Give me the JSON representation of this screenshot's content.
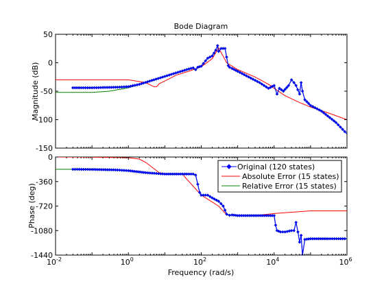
{
  "chart_data": [
    {
      "type": "line",
      "title": "Bode Diagram",
      "ylabel": "Magnitude (dB)",
      "xlabel": "",
      "xscale": "log",
      "xlim": [
        0.01,
        1000000
      ],
      "ylim": [
        -150,
        50
      ],
      "ytick_labels": [
        "50",
        "0",
        "-50",
        "-100",
        "-150"
      ],
      "ytick_values": [
        50,
        0,
        -50,
        -100,
        -150
      ],
      "series": [
        {
          "name": "Original (120 states)",
          "color": "#0000ff",
          "marker": "diamond",
          "x": [
            0.03,
            0.05,
            0.1,
            0.2,
            0.5,
            1,
            2,
            5,
            10,
            20,
            40,
            60,
            70,
            80,
            100,
            150,
            200,
            250,
            280,
            300,
            350,
            450,
            550,
            600,
            700,
            1000,
            2000,
            4000,
            7000,
            10000,
            12000,
            14000,
            18000,
            25000,
            30000,
            35000,
            40000,
            50000,
            55000,
            60000,
            70000,
            100000,
            200000,
            500000,
            1000000
          ],
          "y": [
            -44,
            -44,
            -44,
            -43.5,
            -43,
            -42,
            -38,
            -30,
            -24,
            -18,
            -12,
            -9,
            -12,
            -8,
            -6,
            8,
            12,
            22,
            30,
            20,
            25,
            25,
            -5,
            -8,
            -10,
            -15,
            -25,
            -35,
            -45,
            -40,
            -55,
            -45,
            -50,
            -40,
            -30,
            -35,
            -40,
            -55,
            -35,
            -50,
            -65,
            -75,
            -85,
            -105,
            -125
          ]
        },
        {
          "name": "Absolute Error (15 states)",
          "color": "#ff0000",
          "marker": "none",
          "x": [
            0.01,
            0.1,
            1,
            3,
            5,
            6,
            7,
            10,
            20,
            50,
            100,
            200,
            300,
            500,
            1000,
            3000,
            8000,
            10000,
            20000,
            50000,
            100000,
            300000,
            1000000
          ],
          "y": [
            -30,
            -30,
            -30,
            -35,
            -42,
            -42,
            -37,
            -32,
            -22,
            -14,
            -7,
            7,
            26,
            0,
            -12,
            -25,
            -40,
            -45,
            -58,
            -70,
            -78,
            -88,
            -100
          ]
        },
        {
          "name": "Relative Error (15 states)",
          "color": "#008000",
          "marker": "none",
          "x": [
            0.01,
            0.1,
            0.3,
            1,
            2,
            5,
            10,
            20,
            40,
            60,
            70,
            80,
            100,
            150,
            200,
            250,
            280,
            300,
            350,
            450,
            550,
            600,
            700,
            1000,
            2000,
            4000,
            7000,
            10000,
            12000,
            14000,
            18000,
            25000,
            30000,
            35000,
            40000,
            50000,
            55000,
            60000,
            70000,
            100000,
            200000,
            500000,
            1000000
          ],
          "y": [
            -52,
            -52,
            -50,
            -44,
            -38,
            -30,
            -24,
            -18,
            -12,
            -9,
            -12,
            -8,
            -6,
            8,
            12,
            22,
            30,
            20,
            25,
            25,
            -5,
            -8,
            -10,
            -15,
            -25,
            -35,
            -45,
            -40,
            -55,
            -45,
            -50,
            -40,
            -30,
            -35,
            -40,
            -55,
            -35,
            -50,
            -65,
            -75,
            -85,
            -105,
            -125
          ]
        }
      ]
    },
    {
      "type": "line",
      "title": "",
      "ylabel": "Phase (deg)",
      "xlabel": "Frequency  (rad/s)",
      "xscale": "log",
      "xlim": [
        0.01,
        1000000
      ],
      "ylim": [
        -1440,
        0
      ],
      "ytick_labels": [
        "0",
        "-360",
        "-720",
        "-1080",
        "-1440"
      ],
      "ytick_values": [
        0,
        -360,
        -720,
        -1080,
        -1440
      ],
      "xtick_labels": [
        "10^-2",
        "10^0",
        "10^2",
        "10^4",
        "10^6"
      ],
      "xtick_values": [
        0.01,
        1,
        100,
        10000,
        1000000
      ],
      "legend_position": "top-right",
      "series": [
        {
          "name": "Original (120 states)",
          "color": "#0000ff",
          "marker": "diamond",
          "x": [
            0.03,
            0.1,
            0.5,
            1,
            3,
            10,
            40,
            60,
            70,
            80,
            90,
            100,
            150,
            200,
            300,
            400,
            500,
            600,
            700,
            1000,
            3000,
            7000,
            10000,
            11000,
            12000,
            15000,
            20000,
            30000,
            35000,
            40000,
            45000,
            50000,
            55000,
            60000,
            70000,
            100000,
            300000,
            1000000
          ],
          "y": [
            -180,
            -182,
            -190,
            -200,
            -230,
            -250,
            -250,
            -250,
            -265,
            -400,
            -520,
            -560,
            -560,
            -600,
            -650,
            -720,
            -840,
            -855,
            -850,
            -860,
            -860,
            -860,
            -860,
            -1000,
            -1080,
            -1100,
            -1100,
            -1080,
            -1080,
            -960,
            -1100,
            -1250,
            -1150,
            -1440,
            -1210,
            -1200,
            -1200,
            -1200
          ]
        },
        {
          "name": "Absolute Error (15 states)",
          "color": "#ff0000",
          "marker": "none",
          "x": [
            0.01,
            0.1,
            1,
            2,
            3,
            5,
            7,
            10,
            30,
            100,
            300,
            500,
            1000,
            3000,
            10000,
            100000,
            1000000
          ],
          "y": [
            0,
            -2,
            -10,
            -30,
            -80,
            -170,
            -230,
            -245,
            -250,
            -560,
            -720,
            -850,
            -860,
            -860,
            -830,
            -790,
            -790
          ]
        },
        {
          "name": "Relative Error (15 states)",
          "color": "#008000",
          "marker": "none",
          "x": [
            0.01,
            0.1,
            0.5,
            1,
            3,
            10,
            40,
            60,
            70,
            80,
            90,
            100,
            150,
            200,
            300,
            400,
            500,
            600,
            700,
            1000,
            3000,
            7000,
            10000,
            11000,
            12000,
            15000,
            20000,
            30000,
            35000,
            40000,
            45000,
            50000,
            55000,
            60000,
            70000,
            100000,
            300000,
            1000000
          ],
          "y": [
            -180,
            -180,
            -190,
            -200,
            -230,
            -250,
            -250,
            -250,
            -265,
            -400,
            -520,
            -560,
            -560,
            -600,
            -650,
            -720,
            -840,
            -855,
            -850,
            -860,
            -860,
            -860,
            -860,
            -1000,
            -1080,
            -1100,
            -1100,
            -1080,
            -1080,
            -960,
            -1100,
            -1250,
            -1150,
            -1440,
            -1210,
            -1200,
            -1200,
            -1200
          ]
        }
      ]
    }
  ]
}
